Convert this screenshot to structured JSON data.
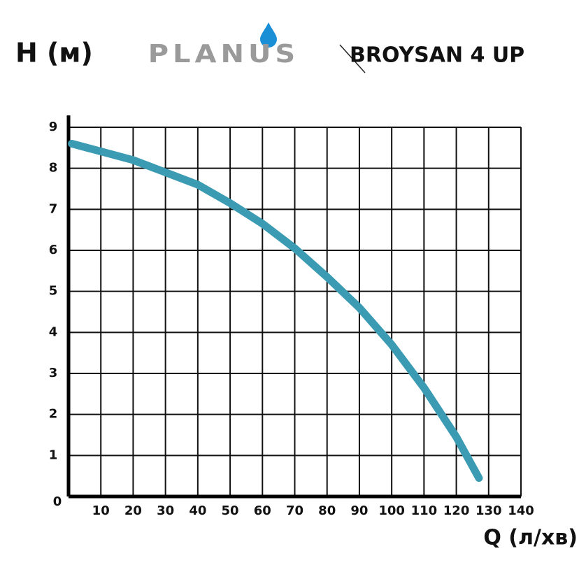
{
  "chart_data": {
    "type": "line",
    "title": "BROYSAN 4 UP",
    "brand": "PLANUS",
    "y_label": "H (м)",
    "x_label": "Q (л/хв)",
    "x": [
      1,
      20,
      30,
      40,
      50,
      60,
      70,
      80,
      90,
      100,
      110,
      120,
      127
    ],
    "series": [
      {
        "name": "BROYSAN 4 UP",
        "color": "#3a9bb3",
        "values": [
          8.6,
          8.2,
          7.9,
          7.6,
          7.15,
          6.65,
          6.05,
          5.35,
          4.6,
          3.7,
          2.65,
          1.45,
          0.45
        ]
      }
    ],
    "xlim": [
      0,
      140
    ],
    "ylim": [
      0,
      9
    ],
    "xticks": [
      10,
      20,
      30,
      40,
      50,
      60,
      70,
      80,
      90,
      100,
      110,
      120,
      130,
      140
    ],
    "yticks": [
      0,
      1,
      2,
      3,
      4,
      5,
      6,
      7,
      8,
      9
    ],
    "grid": true
  }
}
